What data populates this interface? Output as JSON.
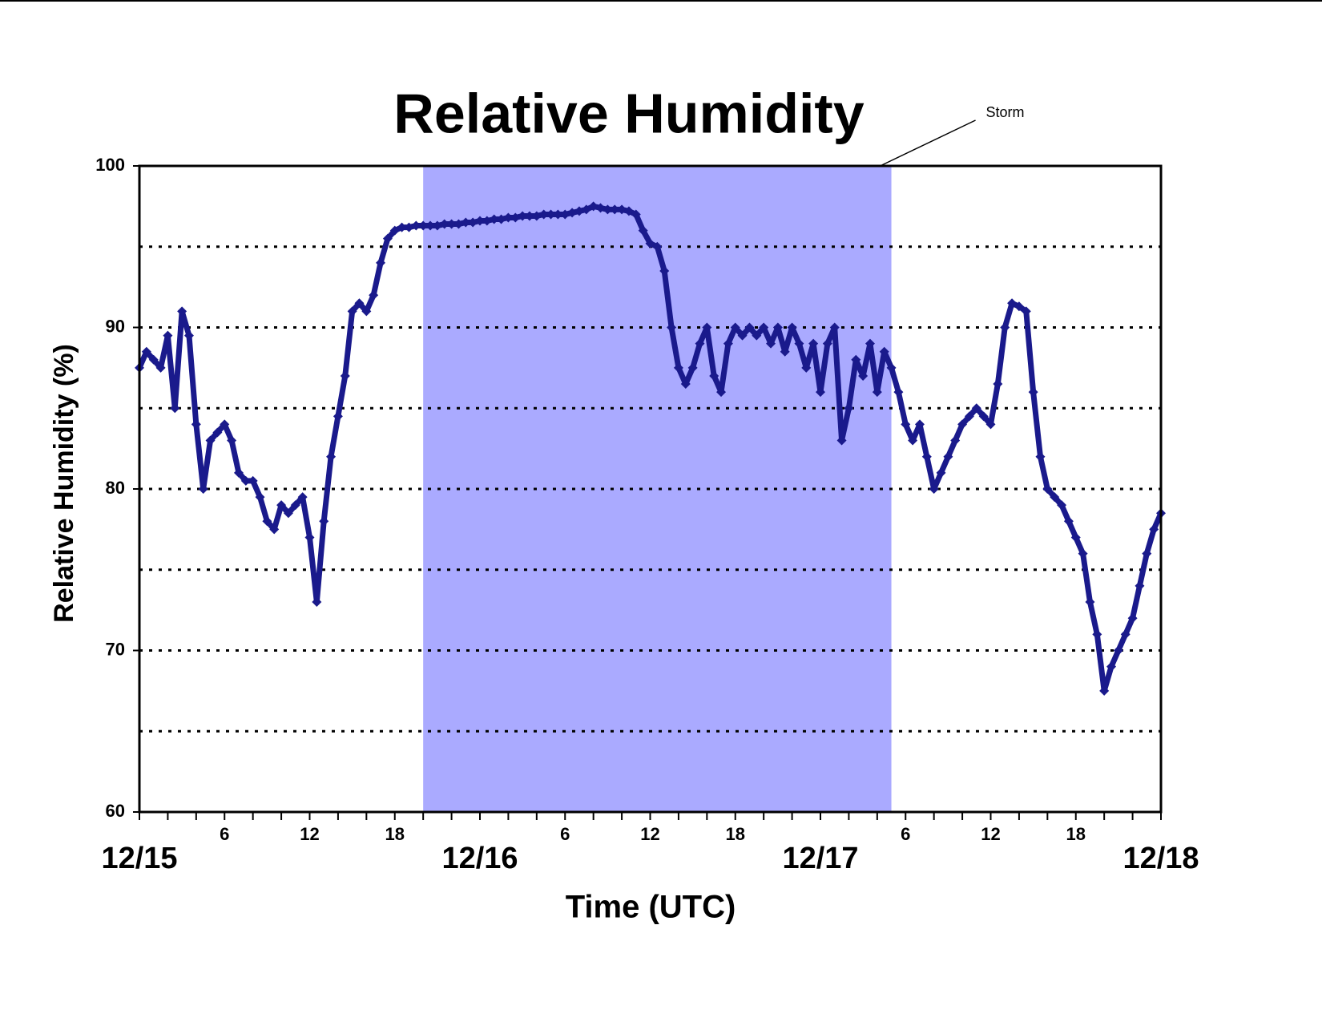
{
  "chart_data": {
    "type": "scatter",
    "title": "Relative Humidity",
    "x_label": "Time (UTC)",
    "y_label": "Relative Humidity (%)",
    "xlim": [
      0,
      72
    ],
    "ylim": [
      60,
      100
    ],
    "yticks": [
      60,
      70,
      80,
      90,
      100
    ],
    "ygrid": [
      65,
      70,
      75,
      80,
      85,
      90,
      95
    ],
    "xticks": [
      6,
      12,
      18,
      {
        "value": 30,
        "label": "6"
      },
      {
        "value": 36,
        "label": "12"
      },
      {
        "value": 42,
        "label": "18"
      },
      {
        "value": 54,
        "label": "6"
      },
      {
        "value": 60,
        "label": "12"
      },
      {
        "value": 66,
        "label": "18"
      }
    ],
    "xdays": [
      {
        "value": 0,
        "label": "12/15"
      },
      {
        "value": 24,
        "label": "12/16"
      },
      {
        "value": 48,
        "label": "12/17"
      },
      {
        "value": 72,
        "label": "12/18"
      }
    ],
    "xminorticks": [
      0,
      2,
      4,
      8,
      10,
      14,
      16,
      20,
      22,
      24,
      26,
      28,
      32,
      34,
      38,
      40,
      44,
      46,
      48,
      50,
      52,
      56,
      58,
      62,
      64,
      68,
      70,
      72
    ],
    "span": {
      "x": [
        20,
        53
      ],
      "label": "Storm",
      "color": "#aaaaff"
    },
    "series": [
      {
        "name": "Relative Humidity",
        "color": "#1a1a8c",
        "x": [
          0,
          0.5,
          1,
          1.5,
          2,
          2.5,
          3,
          3.5,
          4,
          4.5,
          5,
          5.5,
          6,
          6.5,
          7,
          7.5,
          8,
          8.5,
          9,
          9.5,
          10,
          10.5,
          11,
          11.5,
          12,
          12.5,
          13,
          13.5,
          14,
          14.5,
          15,
          15.5,
          16,
          16.5,
          17,
          17.5,
          18,
          18.5,
          19,
          19.5,
          20,
          20.5,
          21,
          21.5,
          22,
          22.5,
          23,
          23.5,
          24,
          24.5,
          25,
          25.5,
          26,
          26.5,
          27,
          27.5,
          28,
          28.5,
          29,
          29.5,
          30,
          30.5,
          31,
          31.5,
          32,
          32.5,
          33,
          33.5,
          34,
          34.5,
          35,
          35.5,
          36,
          36.5,
          37,
          37.5,
          38,
          38.5,
          39,
          39.5,
          40,
          40.5,
          41,
          41.5,
          42,
          42.5,
          43,
          43.5,
          44,
          44.5,
          45,
          45.5,
          46,
          46.5,
          47,
          47.5,
          48,
          48.5,
          49,
          49.5,
          50,
          50.5,
          51,
          51.5,
          52,
          52.5,
          53,
          53.5,
          54,
          54.5,
          55,
          55.5,
          56,
          56.5,
          57,
          57.5,
          58,
          58.5,
          59,
          59.5,
          60,
          60.5,
          61,
          61.5,
          62,
          62.5,
          63,
          63.5,
          64,
          64.5,
          65,
          65.5,
          66,
          66.5,
          67,
          67.5,
          68,
          68.5,
          69,
          69.5,
          70,
          70.5,
          71,
          71.5,
          72
        ],
        "values": [
          87.5,
          88.5,
          88,
          87.5,
          89.5,
          85,
          91,
          89.5,
          84,
          80,
          83,
          83.5,
          84,
          83,
          81,
          80.5,
          80.5,
          79.5,
          78,
          77.5,
          79,
          78.5,
          79,
          79.5,
          77,
          73,
          78,
          82,
          84.5,
          87,
          91,
          91.5,
          91,
          92,
          94,
          95.5,
          96,
          96.2,
          96.2,
          96.3,
          96.3,
          96.3,
          96.3,
          96.4,
          96.4,
          96.4,
          96.5,
          96.5,
          96.6,
          96.6,
          96.7,
          96.7,
          96.8,
          96.8,
          96.9,
          96.9,
          96.9,
          97,
          97,
          97,
          97,
          97.1,
          97.2,
          97.3,
          97.5,
          97.4,
          97.3,
          97.3,
          97.3,
          97.2,
          97,
          96,
          95.2,
          95,
          93.5,
          90,
          87.5,
          86.5,
          87.5,
          89,
          90,
          87,
          86,
          89,
          90,
          89.5,
          90,
          89.5,
          90,
          89,
          90,
          88.5,
          90,
          89,
          87.5,
          89,
          86,
          89,
          90,
          83,
          85,
          88,
          87,
          89,
          86,
          88.5,
          87.5,
          86,
          84,
          83,
          84,
          82,
          80,
          81,
          82,
          83,
          84,
          84.5,
          85,
          84.5,
          84,
          86.5,
          90,
          91.5,
          91.3,
          91,
          86,
          82,
          80,
          79.5,
          79,
          78,
          77,
          76,
          73,
          71,
          67.5,
          69,
          70,
          71,
          72,
          74,
          76,
          77.5,
          78.5
        ]
      }
    ]
  }
}
